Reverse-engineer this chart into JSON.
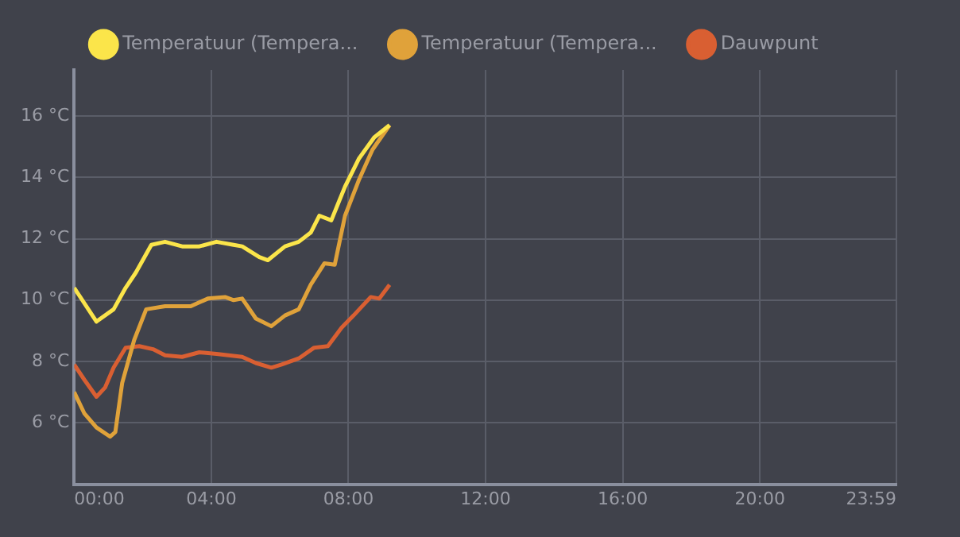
{
  "chart_data": {
    "type": "line",
    "xlim": [
      0,
      23.983
    ],
    "xticks": [
      {
        "value": 0,
        "label": "00:00"
      },
      {
        "value": 4,
        "label": "04:00"
      },
      {
        "value": 8,
        "label": "08:00"
      },
      {
        "value": 12,
        "label": "12:00"
      },
      {
        "value": 16,
        "label": "16:00"
      },
      {
        "value": 20,
        "label": "20:00"
      },
      {
        "value": 23.983,
        "label": "23:59"
      }
    ],
    "ylim": [
      4,
      17.5
    ],
    "yticks": [
      {
        "value": 6,
        "label": "6 °C"
      },
      {
        "value": 8,
        "label": "8 °C"
      },
      {
        "value": 10,
        "label": "10 °C"
      },
      {
        "value": 12,
        "label": "12 °C"
      },
      {
        "value": 14,
        "label": "14 °C"
      },
      {
        "value": 16,
        "label": "16 °C"
      }
    ],
    "grid": true,
    "legend": "top",
    "marker": "none",
    "line_style": "solid",
    "series": [
      {
        "name": "Temperatuur (Tempera...",
        "color": "#fbe54a",
        "x": [
          0,
          0.65,
          1.15,
          1.5,
          1.8,
          2.25,
          2.65,
          3.15,
          3.65,
          4.15,
          4.65,
          4.9,
          5.4,
          5.65,
          6.15,
          6.55,
          6.9,
          7.15,
          7.5,
          7.9,
          8.3,
          8.75,
          9.2
        ],
        "values": [
          10.4,
          9.3,
          9.7,
          10.4,
          10.9,
          11.8,
          11.9,
          11.75,
          11.75,
          11.9,
          11.8,
          11.75,
          11.4,
          11.3,
          11.75,
          11.9,
          12.2,
          12.75,
          12.6,
          13.7,
          14.6,
          15.3,
          15.7
        ]
      },
      {
        "name": "Temperatuur (Tempera...",
        "color": "#e0a23a",
        "x": [
          0,
          0.3,
          0.65,
          1.05,
          1.2,
          1.4,
          1.75,
          2.1,
          2.65,
          3.4,
          3.9,
          4.4,
          4.65,
          4.9,
          5.3,
          5.75,
          6.15,
          6.55,
          6.9,
          7.3,
          7.6,
          7.9,
          8.3,
          8.7,
          9.2
        ],
        "values": [
          7.0,
          6.3,
          5.85,
          5.55,
          5.7,
          7.3,
          8.7,
          9.7,
          9.8,
          9.8,
          10.05,
          10.1,
          10.0,
          10.05,
          9.4,
          9.15,
          9.5,
          9.7,
          10.5,
          11.2,
          11.15,
          12.75,
          13.9,
          14.9,
          15.7
        ]
      },
      {
        "name": "Dauwpunt",
        "color": "#d95f32",
        "x": [
          0,
          0.3,
          0.65,
          0.9,
          1.15,
          1.5,
          1.9,
          2.3,
          2.65,
          3.15,
          3.65,
          4.15,
          4.9,
          5.3,
          5.75,
          6.05,
          6.55,
          7.0,
          7.4,
          7.8,
          8.15,
          8.65,
          8.9,
          9.2
        ],
        "values": [
          7.9,
          7.4,
          6.85,
          7.15,
          7.8,
          8.45,
          8.5,
          8.4,
          8.2,
          8.15,
          8.3,
          8.25,
          8.15,
          7.95,
          7.8,
          7.9,
          8.1,
          8.45,
          8.5,
          9.1,
          9.5,
          10.1,
          10.05,
          10.5
        ]
      }
    ]
  }
}
